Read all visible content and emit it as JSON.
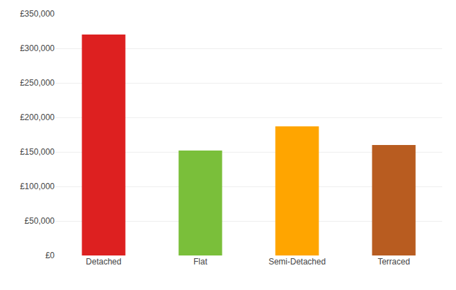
{
  "chart_data": {
    "type": "bar",
    "categories": [
      "Detached",
      "Flat",
      "Semi-Detached",
      "Terraced"
    ],
    "values": [
      320000,
      152000,
      187000,
      160000
    ],
    "colors": [
      "#dd2020",
      "#7abf3a",
      "#ffa500",
      "#b85c20"
    ],
    "ylim": [
      0,
      350000
    ],
    "yticks": [
      {
        "value": 0,
        "label": "£0"
      },
      {
        "value": 50000,
        "label": "£50,000"
      },
      {
        "value": 100000,
        "label": "£100,000"
      },
      {
        "value": 150000,
        "label": "£150,000"
      },
      {
        "value": 200000,
        "label": "£200,000"
      },
      {
        "value": 250000,
        "label": "£250,000"
      },
      {
        "value": 300000,
        "label": "£300,000"
      },
      {
        "value": 350000,
        "label": "£350,000"
      }
    ],
    "grid": true
  }
}
